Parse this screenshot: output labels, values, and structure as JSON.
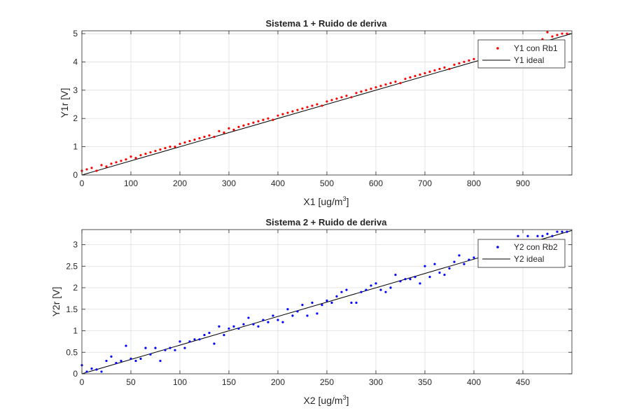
{
  "chart_data": [
    {
      "type": "scatter",
      "title": "Sistema 1 + Ruido de deriva",
      "xlabel": "X1 [ug/m",
      "xlabel_sup": "3",
      "xlabel_end": "]",
      "ylabel": "Y1r [V]",
      "xlim": [
        0,
        1000
      ],
      "ylim": [
        0,
        5.1
      ],
      "xticks": [
        "0",
        "100",
        "200",
        "300",
        "400",
        "500",
        "600",
        "700",
        "800",
        "900"
      ],
      "yticks": [
        "0",
        "1",
        "2",
        "3",
        "4",
        "5"
      ],
      "grid": true,
      "legend_position": "top-right",
      "series": [
        {
          "name": "Y1 con Rb1",
          "kind": "scatter",
          "color": "#ff0000",
          "x": [
            0,
            10,
            20,
            30,
            40,
            50,
            60,
            70,
            80,
            90,
            100,
            110,
            120,
            130,
            140,
            150,
            160,
            170,
            180,
            190,
            200,
            210,
            220,
            230,
            240,
            250,
            260,
            270,
            280,
            290,
            300,
            310,
            320,
            330,
            340,
            350,
            360,
            370,
            380,
            390,
            400,
            410,
            420,
            430,
            440,
            450,
            460,
            470,
            480,
            490,
            500,
            510,
            520,
            530,
            540,
            550,
            560,
            570,
            580,
            590,
            600,
            610,
            620,
            630,
            640,
            650,
            660,
            670,
            680,
            690,
            700,
            710,
            720,
            730,
            740,
            750,
            760,
            770,
            780,
            790,
            800,
            810,
            820,
            830,
            840,
            850,
            860,
            870,
            880,
            890,
            900,
            910,
            920,
            930,
            940,
            950,
            960,
            970,
            980,
            990
          ],
          "y": [
            0.15,
            0.2,
            0.25,
            0.15,
            0.35,
            0.3,
            0.4,
            0.45,
            0.5,
            0.55,
            0.65,
            0.6,
            0.7,
            0.75,
            0.8,
            0.85,
            0.9,
            0.95,
            1.0,
            1.0,
            1.1,
            1.15,
            1.2,
            1.25,
            1.3,
            1.35,
            1.4,
            1.35,
            1.55,
            1.5,
            1.65,
            1.6,
            1.7,
            1.75,
            1.8,
            1.85,
            1.9,
            1.95,
            2.0,
            1.95,
            2.1,
            2.15,
            2.2,
            2.25,
            2.3,
            2.35,
            2.4,
            2.45,
            2.5,
            2.45,
            2.6,
            2.65,
            2.7,
            2.75,
            2.8,
            2.75,
            2.9,
            2.95,
            3.0,
            3.05,
            3.1,
            3.15,
            3.2,
            3.25,
            3.3,
            3.25,
            3.4,
            3.45,
            3.5,
            3.55,
            3.6,
            3.65,
            3.7,
            3.75,
            3.8,
            3.75,
            3.9,
            3.95,
            4.0,
            4.05,
            4.1,
            4.15,
            4.2,
            4.25,
            4.3,
            4.25,
            4.4,
            4.45,
            4.5,
            4.55,
            4.6,
            4.65,
            4.7,
            4.75,
            4.8,
            5.05,
            4.9,
            4.95,
            5.0,
            5.0
          ]
        },
        {
          "name": "Y1 ideal",
          "kind": "line",
          "color": "#000000",
          "x": [
            0,
            1000
          ],
          "y": [
            0,
            5.0
          ]
        }
      ]
    },
    {
      "type": "scatter",
      "title": "Sistema 2 + Ruido de deriva",
      "xlabel": "X2 [ug/m",
      "xlabel_sup": "3",
      "xlabel_end": "]",
      "ylabel": "Y2r [V]",
      "xlim": [
        0,
        500
      ],
      "ylim": [
        0,
        3.35
      ],
      "xticks": [
        "0",
        "50",
        "100",
        "150",
        "200",
        "250",
        "300",
        "350",
        "400",
        "450"
      ],
      "yticks": [
        "0",
        "0.5",
        "1",
        "1.5",
        "2",
        "2.5",
        "3"
      ],
      "grid": true,
      "legend_position": "top-right",
      "series": [
        {
          "name": "Y2 con Rb2",
          "kind": "scatter",
          "color": "#0000ff",
          "x": [
            0,
            5,
            10,
            15,
            20,
            25,
            30,
            35,
            40,
            45,
            50,
            55,
            60,
            65,
            70,
            75,
            80,
            85,
            90,
            95,
            100,
            105,
            110,
            115,
            120,
            125,
            130,
            135,
            140,
            145,
            150,
            155,
            160,
            165,
            170,
            175,
            180,
            185,
            190,
            195,
            200,
            205,
            210,
            215,
            220,
            225,
            230,
            235,
            240,
            245,
            250,
            255,
            260,
            265,
            270,
            275,
            280,
            285,
            290,
            295,
            300,
            305,
            310,
            315,
            320,
            325,
            330,
            335,
            340,
            345,
            350,
            355,
            360,
            365,
            370,
            375,
            380,
            385,
            390,
            395,
            400,
            405,
            410,
            415,
            420,
            425,
            430,
            435,
            440,
            445,
            450,
            455,
            460,
            465,
            470,
            475,
            480,
            485,
            490,
            495
          ],
          "y": [
            0.2,
            0.05,
            0.12,
            0.1,
            0.05,
            0.3,
            0.4,
            0.25,
            0.3,
            0.65,
            0.35,
            0.3,
            0.35,
            0.6,
            0.45,
            0.6,
            0.3,
            0.55,
            0.6,
            0.55,
            0.75,
            0.6,
            0.75,
            0.8,
            0.8,
            0.9,
            0.95,
            0.7,
            1.1,
            0.9,
            1.05,
            1.1,
            1.05,
            1.15,
            1.3,
            1.15,
            1.1,
            1.25,
            1.2,
            1.35,
            1.25,
            1.2,
            1.5,
            1.35,
            1.45,
            1.6,
            1.35,
            1.65,
            1.4,
            1.6,
            1.7,
            1.65,
            1.8,
            1.9,
            1.95,
            1.65,
            1.65,
            1.9,
            1.95,
            2.05,
            2.1,
            1.95,
            1.9,
            2.0,
            2.3,
            2.15,
            2.2,
            2.2,
            2.25,
            2.1,
            2.5,
            2.25,
            2.55,
            2.35,
            2.3,
            2.45,
            2.6,
            2.75,
            2.55,
            2.65,
            2.7,
            2.7,
            2.7,
            2.75,
            2.8,
            2.8,
            2.9,
            2.85,
            2.9,
            3.2,
            3.0,
            3.2,
            3.05,
            3.2,
            3.2,
            3.25,
            3.2,
            3.3,
            3.3,
            3.3
          ]
        },
        {
          "name": "Y2 ideal",
          "kind": "line",
          "color": "#000000",
          "x": [
            0,
            500
          ],
          "y": [
            0,
            3.33
          ]
        }
      ]
    }
  ]
}
